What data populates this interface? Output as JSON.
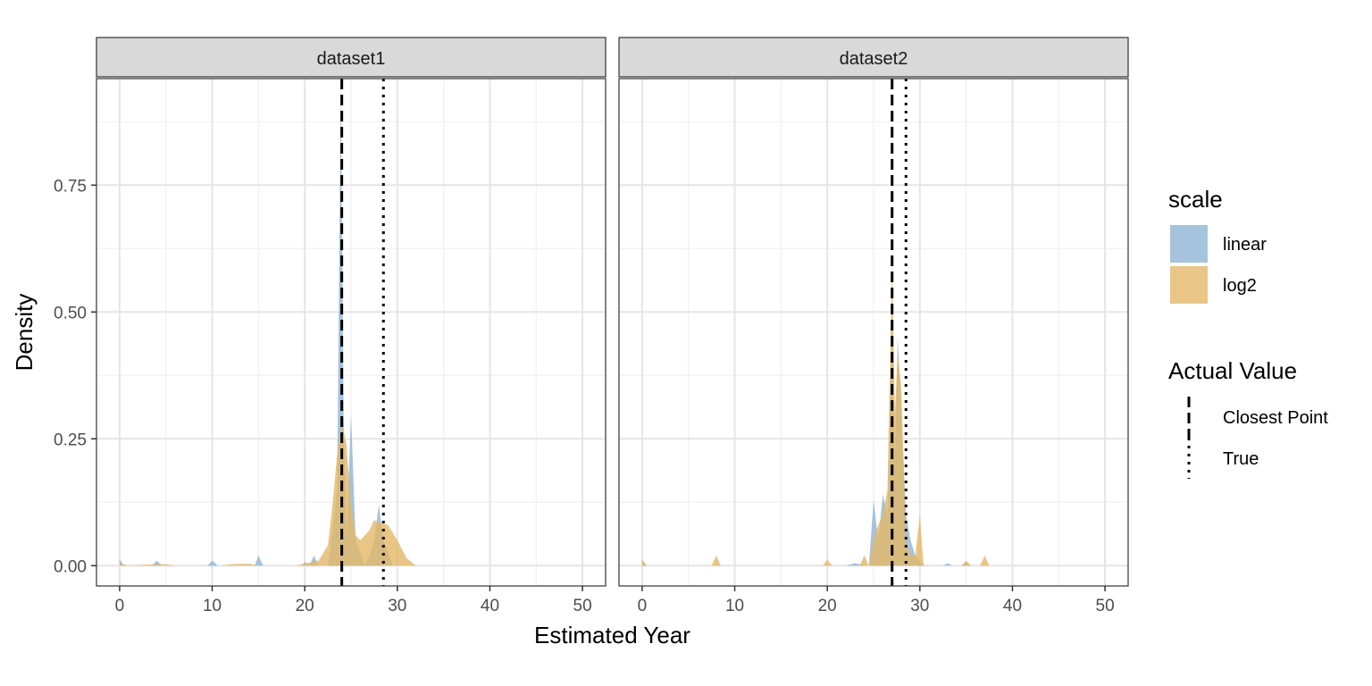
{
  "chart_data": {
    "type": "area",
    "xlabel": "Estimated Year",
    "ylabel": "Density",
    "xlim": [
      -2.5,
      52.5
    ],
    "ylim": [
      -0.04,
      0.96
    ],
    "x_ticks": [
      0,
      10,
      20,
      30,
      40,
      50
    ],
    "x_tick_labels": [
      "0",
      "10",
      "20",
      "30",
      "40",
      "50"
    ],
    "x_minor_ticks": [
      5,
      15,
      25,
      35,
      45
    ],
    "y_ticks": [
      0.0,
      0.25,
      0.5,
      0.75
    ],
    "y_tick_labels": [
      "0.00",
      "0.25",
      "0.50",
      "0.75"
    ],
    "y_minor_ticks": [
      0.125,
      0.375,
      0.625,
      0.875
    ],
    "grid": true,
    "legend_position": "right",
    "fill_legend": {
      "title": "scale",
      "entries": [
        {
          "label": "linear",
          "color": "#8fb4d4"
        },
        {
          "label": "log2",
          "color": "#e3b866"
        }
      ]
    },
    "line_legend": {
      "title": "Actual Value",
      "entries": [
        {
          "label": "Closest Point",
          "dash": "dashed"
        },
        {
          "label": "True",
          "dash": "dotted"
        }
      ]
    },
    "panels": [
      {
        "title": "dataset1",
        "vlines": {
          "closest": 24,
          "true": 28.5
        },
        "series": [
          {
            "name": "linear",
            "points": [
              [
                0,
                0.012
              ],
              [
                0.5,
                0.0
              ],
              [
                3.5,
                0.0
              ],
              [
                4,
                0.01
              ],
              [
                4.6,
                0.0
              ],
              [
                9.5,
                0.0
              ],
              [
                10,
                0.01
              ],
              [
                10.6,
                0.0
              ],
              [
                14.6,
                0.0
              ],
              [
                15,
                0.02
              ],
              [
                15.5,
                0.0
              ],
              [
                19.7,
                0.0
              ],
              [
                20,
                0.008
              ],
              [
                20.5,
                0.0
              ],
              [
                21,
                0.02
              ],
              [
                21.5,
                0.0
              ],
              [
                22.5,
                0.0
              ],
              [
                23,
                0.07
              ],
              [
                23.5,
                0.15
              ],
              [
                23.9,
                0.95
              ],
              [
                24.2,
                0.3
              ],
              [
                24.5,
                0.05
              ],
              [
                25,
                0.3
              ],
              [
                25.5,
                0.05
              ],
              [
                26.5,
                0.0
              ],
              [
                27,
                0.02
              ],
              [
                27.5,
                0.05
              ],
              [
                28,
                0.12
              ],
              [
                28.5,
                0.05
              ],
              [
                29.5,
                0.0
              ]
            ]
          },
          {
            "name": "log2",
            "points": [
              [
                0,
                0.005
              ],
              [
                1,
                0.0
              ],
              [
                4,
                0.003
              ],
              [
                5,
                0.003
              ],
              [
                6,
                0.0
              ],
              [
                11,
                0.0
              ],
              [
                12,
                0.003
              ],
              [
                14,
                0.004
              ],
              [
                15,
                0.0
              ],
              [
                19,
                0.0
              ],
              [
                21.5,
                0.01
              ],
              [
                22.5,
                0.04
              ],
              [
                23,
                0.12
              ],
              [
                23.5,
                0.22
              ],
              [
                24,
                0.28
              ],
              [
                24.5,
                0.24
              ],
              [
                25,
                0.12
              ],
              [
                25.5,
                0.06
              ],
              [
                26,
                0.05
              ],
              [
                26.5,
                0.06
              ],
              [
                27,
                0.07
              ],
              [
                27.5,
                0.09
              ],
              [
                28,
                0.085
              ],
              [
                29,
                0.08
              ],
              [
                30,
                0.05
              ],
              [
                31,
                0.015
              ],
              [
                32,
                0.0
              ]
            ]
          }
        ]
      },
      {
        "title": "dataset2",
        "vlines": {
          "closest": 27,
          "true": 28.5
        },
        "series": [
          {
            "name": "linear",
            "points": [
              [
                0,
                0.012
              ],
              [
                0.5,
                0.0
              ],
              [
                22,
                0.0
              ],
              [
                23,
                0.005
              ],
              [
                24,
                0.0
              ],
              [
                24.5,
                0.0
              ],
              [
                25,
                0.13
              ],
              [
                25.5,
                0.05
              ],
              [
                26,
                0.14
              ],
              [
                26.5,
                0.1
              ],
              [
                27,
                0.5
              ],
              [
                27.3,
                0.2
              ],
              [
                27.6,
                0.45
              ],
              [
                28,
                0.3
              ],
              [
                28.5,
                0.1
              ],
              [
                29,
                0.05
              ],
              [
                29.5,
                0.02
              ],
              [
                30,
                0.01
              ],
              [
                30.5,
                0.0
              ],
              [
                32.5,
                0.0
              ],
              [
                33,
                0.005
              ],
              [
                33.5,
                0.0
              ],
              [
                34.5,
                0.0
              ],
              [
                35,
                0.006
              ],
              [
                35.5,
                0.0
              ]
            ]
          },
          {
            "name": "log2",
            "points": [
              [
                0,
                0.012
              ],
              [
                0.5,
                0.0
              ],
              [
                7.5,
                0.0
              ],
              [
                8,
                0.02
              ],
              [
                8.5,
                0.0
              ],
              [
                19.5,
                0.0
              ],
              [
                20,
                0.012
              ],
              [
                20.5,
                0.0
              ],
              [
                23.5,
                0.0
              ],
              [
                24,
                0.02
              ],
              [
                24.5,
                0.0
              ],
              [
                25,
                0.05
              ],
              [
                25.5,
                0.08
              ],
              [
                26,
                0.1
              ],
              [
                26.5,
                0.15
              ],
              [
                27,
                0.6
              ],
              [
                27.3,
                0.3
              ],
              [
                27.6,
                0.42
              ],
              [
                28,
                0.35
              ],
              [
                28.5,
                0.05
              ],
              [
                29,
                0.02
              ],
              [
                29.5,
                0.02
              ],
              [
                30,
                0.1
              ],
              [
                30.4,
                0.0
              ],
              [
                34.5,
                0.0
              ],
              [
                35,
                0.01
              ],
              [
                35.5,
                0.0
              ],
              [
                36.5,
                0.0
              ],
              [
                37,
                0.02
              ],
              [
                37.5,
                0.0
              ]
            ]
          }
        ]
      }
    ]
  }
}
